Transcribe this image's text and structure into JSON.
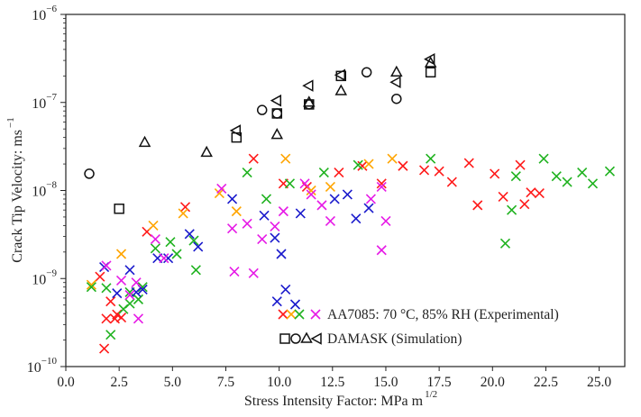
{
  "chart_data": {
    "type": "scatter",
    "title": "",
    "xlabel": "Stress Intensity Factor: MPa m",
    "xlabel_sup": "1/2",
    "ylabel": "Crack Tip Velocity: ms",
    "ylabel_sup": "−1",
    "xlim": [
      0,
      26.2
    ],
    "ylim": [
      1e-10,
      1e-06
    ],
    "yscale": "log",
    "grid": false,
    "legend_position": "bottom-center",
    "x_ticks": [
      "0.0",
      "2.5",
      "5.0",
      "7.5",
      "10.0",
      "12.5",
      "15.0",
      "17.5",
      "20.0",
      "22.5",
      "25.0"
    ],
    "x_tick_values": [
      0,
      2.5,
      5,
      7.5,
      10,
      12.5,
      15,
      17.5,
      20,
      22.5,
      25
    ],
    "y_ticks": [
      {
        "base": "10",
        "exp": "−6",
        "value": 1e-06
      },
      {
        "base": "10",
        "exp": "−7",
        "value": 1e-07
      },
      {
        "base": "10",
        "exp": "−8",
        "value": 1e-08
      },
      {
        "base": "10",
        "exp": "−9",
        "value": 1e-09
      },
      {
        "base": "10",
        "exp": "−10",
        "value": 1e-10
      }
    ],
    "legend": [
      {
        "label": "AA7085: 70 °C,  85% RH (Experimental)",
        "markers": "x",
        "colors": [
          "#ff1a1a",
          "#ffa500",
          "#1fb21f",
          "#1a1acc",
          "#e61ae6"
        ]
      },
      {
        "label": "DAMASK (Simulation)",
        "markers": "square,circle,triangle-up,triangle-left",
        "colors": [
          "#111111"
        ]
      }
    ],
    "series": [
      {
        "name": "AA7085 red",
        "group": "experimental",
        "marker": "x",
        "color": "#ff1a1a",
        "points": [
          [
            1.8,
            1.6e-10
          ],
          [
            1.6,
            1.05e-09
          ],
          [
            1.9,
            3.5e-10
          ],
          [
            2.1,
            5.5e-10
          ],
          [
            2.3,
            3.5e-10
          ],
          [
            2.6,
            3.6e-10
          ],
          [
            2.4,
            3.9e-10
          ],
          [
            3.8,
            3.4e-09
          ],
          [
            5.6,
            6.5e-09
          ],
          [
            8.8,
            2.3e-08
          ],
          [
            10.2,
            1.2e-08
          ],
          [
            11.3,
            1.1e-08
          ],
          [
            12.8,
            1.6e-08
          ],
          [
            13.9,
            1.9e-08
          ],
          [
            14.8,
            1.2e-08
          ],
          [
            15.8,
            1.9e-08
          ],
          [
            16.8,
            1.7e-08
          ],
          [
            17.5,
            1.65e-08
          ],
          [
            18.1,
            1.25e-08
          ],
          [
            18.9,
            2.05e-08
          ],
          [
            19.3,
            6.8e-09
          ],
          [
            20.1,
            1.55e-08
          ],
          [
            20.5,
            8.5e-09
          ],
          [
            21.3,
            1.95e-08
          ],
          [
            21.5,
            7e-09
          ],
          [
            21.8,
            9.5e-09
          ],
          [
            22.2,
            9.3e-09
          ]
        ]
      },
      {
        "name": "AA7085 orange",
        "group": "experimental",
        "marker": "x",
        "color": "#ffa500",
        "points": [
          [
            1.2,
            8.5e-10
          ],
          [
            2.6,
            1.9e-09
          ],
          [
            4.1,
            4e-09
          ],
          [
            5.5,
            5.5e-09
          ],
          [
            7.2,
            9.3e-09
          ],
          [
            8.0,
            5.8e-09
          ],
          [
            10.3,
            2.3e-08
          ],
          [
            11.5,
            1e-08
          ],
          [
            12.4,
            1.1e-08
          ],
          [
            14.2,
            2e-08
          ],
          [
            15.3,
            2.3e-08
          ]
        ]
      },
      {
        "name": "AA7085 green",
        "group": "experimental",
        "marker": "x",
        "color": "#1fb21f",
        "points": [
          [
            1.2,
            8e-10
          ],
          [
            1.9,
            7.8e-10
          ],
          [
            2.1,
            2.3e-10
          ],
          [
            2.7,
            4.5e-10
          ],
          [
            3.0,
            5.2e-10
          ],
          [
            3.0,
            7e-10
          ],
          [
            3.4,
            5.8e-10
          ],
          [
            3.6,
            8e-10
          ],
          [
            4.2,
            2.2e-09
          ],
          [
            4.9,
            2.6e-09
          ],
          [
            5.2,
            1.9e-09
          ],
          [
            6.0,
            2.7e-09
          ],
          [
            6.1,
            1.25e-09
          ],
          [
            8.5,
            1.6e-08
          ],
          [
            9.4,
            8e-09
          ],
          [
            10.5,
            1.2e-08
          ],
          [
            12.1,
            1.6e-08
          ],
          [
            13.7,
            1.95e-08
          ],
          [
            17.1,
            2.3e-08
          ],
          [
            21.1,
            1.45e-08
          ],
          [
            20.6,
            2.5e-09
          ],
          [
            20.9,
            6e-09
          ],
          [
            22.4,
            2.3e-08
          ],
          [
            23.0,
            1.45e-08
          ],
          [
            23.5,
            1.25e-08
          ],
          [
            24.2,
            1.6e-08
          ],
          [
            24.7,
            1.2e-08
          ],
          [
            25.5,
            1.65e-08
          ]
        ]
      },
      {
        "name": "AA7085 blue",
        "group": "experimental",
        "marker": "x",
        "color": "#1a1acc",
        "points": [
          [
            1.8,
            1.35e-09
          ],
          [
            2.4,
            6.8e-10
          ],
          [
            3.0,
            1.25e-09
          ],
          [
            3.3,
            7e-10
          ],
          [
            3.6,
            7.5e-10
          ],
          [
            4.3,
            1.7e-09
          ],
          [
            4.8,
            1.7e-09
          ],
          [
            5.8,
            3.2e-09
          ],
          [
            6.2,
            2.3e-09
          ],
          [
            7.8,
            8e-09
          ],
          [
            9.3,
            5.2e-09
          ],
          [
            9.8,
            2.9e-09
          ],
          [
            10.1,
            1.9e-09
          ],
          [
            10.3,
            7.5e-10
          ],
          [
            9.9,
            5.5e-10
          ],
          [
            11.0,
            5.5e-09
          ],
          [
            12.6,
            8e-09
          ],
          [
            13.2,
            9e-09
          ],
          [
            13.6,
            4.8e-09
          ],
          [
            14.2,
            6.3e-09
          ]
        ]
      },
      {
        "name": "AA7085 magenta",
        "group": "experimental",
        "marker": "x",
        "color": "#e61ae6",
        "points": [
          [
            1.9,
            1.4e-09
          ],
          [
            2.6,
            9.5e-10
          ],
          [
            3.3,
            9e-10
          ],
          [
            3.4,
            3.5e-10
          ],
          [
            3.0,
            6.5e-10
          ],
          [
            4.2,
            2.8e-09
          ],
          [
            4.6,
            1.7e-09
          ],
          [
            7.3,
            1.05e-08
          ],
          [
            7.8,
            3.7e-09
          ],
          [
            8.5,
            4.2e-09
          ],
          [
            7.9,
            1.2e-09
          ],
          [
            8.8,
            1.15e-09
          ],
          [
            9.2,
            2.8e-09
          ],
          [
            9.8,
            3.9e-09
          ],
          [
            10.2,
            5.8e-09
          ],
          [
            11.2,
            1.2e-08
          ],
          [
            11.5,
            9e-09
          ],
          [
            12.0,
            6.8e-09
          ],
          [
            12.4,
            4.5e-09
          ],
          [
            14.3,
            8e-09
          ],
          [
            14.8,
            1.1e-08
          ],
          [
            15.0,
            4.5e-09
          ],
          [
            14.8,
            2.1e-09
          ]
        ]
      },
      {
        "name": "DAMASK square",
        "group": "simulation",
        "marker": "square",
        "color": "#111111",
        "points": [
          [
            2.5,
            6.2e-09
          ],
          [
            8.0,
            4e-08
          ],
          [
            9.9,
            7.5e-08
          ],
          [
            11.4,
            9.5e-08
          ],
          [
            12.9,
            2e-07
          ],
          [
            17.1,
            2.2e-07
          ]
        ]
      },
      {
        "name": "DAMASK circle",
        "group": "simulation",
        "marker": "circle",
        "color": "#111111",
        "points": [
          [
            1.1,
            1.55e-08
          ],
          [
            9.2,
            8.2e-08
          ],
          [
            9.9,
            7.5e-08
          ],
          [
            11.4,
            9.5e-08
          ],
          [
            14.1,
            2.2e-07
          ],
          [
            15.5,
            1.1e-07
          ]
        ]
      },
      {
        "name": "DAMASK triangle-up",
        "group": "simulation",
        "marker": "triangle-up",
        "color": "#111111",
        "points": [
          [
            3.7,
            3.5e-08
          ],
          [
            6.6,
            2.7e-08
          ],
          [
            9.9,
            4.3e-08
          ],
          [
            11.4,
            1e-07
          ],
          [
            12.9,
            1.35e-07
          ],
          [
            15.5,
            2.2e-07
          ],
          [
            17.1,
            2.8e-07
          ]
        ]
      },
      {
        "name": "DAMASK triangle-left",
        "group": "simulation",
        "marker": "triangle-left",
        "color": "#111111",
        "points": [
          [
            8.0,
            4.8e-08
          ],
          [
            9.9,
            1.05e-07
          ],
          [
            11.4,
            1.55e-07
          ],
          [
            12.9,
            2.05e-07
          ],
          [
            15.5,
            1.7e-07
          ],
          [
            17.1,
            3.1e-07
          ]
        ]
      }
    ]
  }
}
